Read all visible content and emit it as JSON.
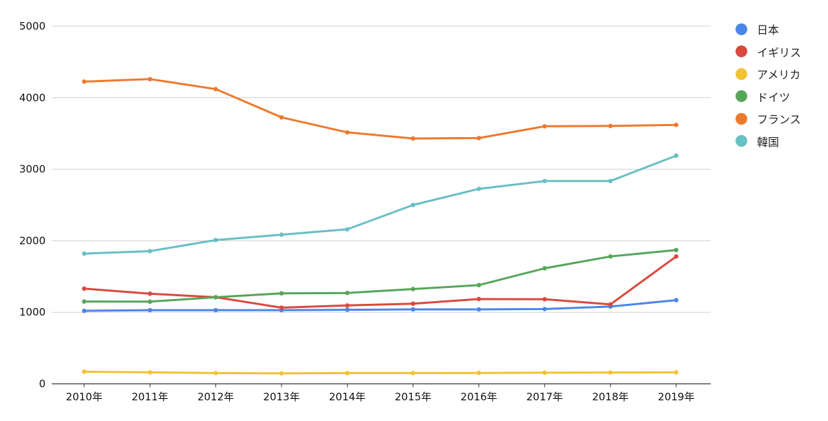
{
  "chart_data": {
    "type": "line",
    "title": "",
    "xlabel": "",
    "ylabel": "",
    "categories": [
      "2010年",
      "2011年",
      "2012年",
      "2013年",
      "2014年",
      "2015年",
      "2016年",
      "2017年",
      "2018年",
      "2019年"
    ],
    "ylim": [
      0,
      5000
    ],
    "yticks": [
      0,
      1000,
      2000,
      3000,
      4000,
      5000
    ],
    "grid": true,
    "legend_position": "right",
    "series": [
      {
        "name": "日本",
        "color": "#4a86e8",
        "values": [
          1020,
          1030,
          1030,
          1030,
          1035,
          1040,
          1040,
          1045,
          1080,
          1170
        ]
      },
      {
        "name": "イギリス",
        "color": "#d9493e",
        "values": [
          1330,
          1260,
          1210,
          1065,
          1095,
          1120,
          1185,
          1182,
          1110,
          1780
        ]
      },
      {
        "name": "アメリカ",
        "color": "#f1c232",
        "values": [
          170,
          160,
          150,
          145,
          150,
          150,
          152,
          155,
          158,
          160
        ]
      },
      {
        "name": "ドイツ",
        "color": "#57a55a",
        "values": [
          1150,
          1148,
          1210,
          1265,
          1270,
          1325,
          1380,
          1615,
          1780,
          1870
        ]
      },
      {
        "name": "フランス",
        "color": "#ec7a2e",
        "values": [
          4225,
          4260,
          4120,
          3725,
          3515,
          3430,
          3435,
          3600,
          3605,
          3620
        ]
      },
      {
        "name": "韓国",
        "color": "#68bfc5",
        "values": [
          1820,
          1855,
          2010,
          2085,
          2160,
          2500,
          2725,
          2835,
          2835,
          3190
        ]
      }
    ]
  }
}
